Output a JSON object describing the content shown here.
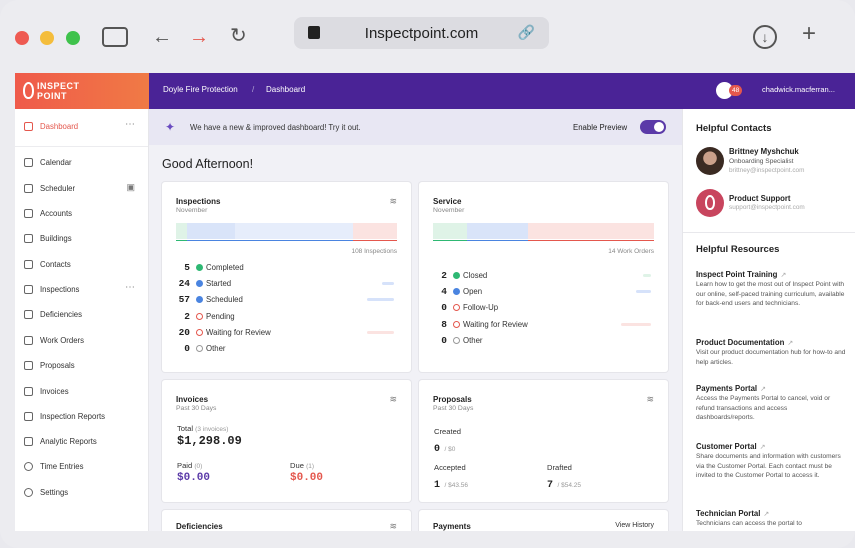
{
  "browser": {
    "url": "Inspectpoint.com"
  },
  "topbar": {
    "logo_line1": "INSPECT",
    "logo_line2": "POINT",
    "crumb_company": "Doyle Fire Protection",
    "crumb_page": "Dashboard",
    "notifications": "48",
    "user": "chadwick.macferran..."
  },
  "sidebar": {
    "items": [
      {
        "label": "Dashboard",
        "icon": "dashboard-icon"
      },
      {
        "label": "Calendar",
        "icon": "calendar-icon"
      },
      {
        "label": "Scheduler",
        "icon": "scheduler-icon"
      },
      {
        "label": "Accounts",
        "icon": "accounts-icon"
      },
      {
        "label": "Buildings",
        "icon": "buildings-icon"
      },
      {
        "label": "Contacts",
        "icon": "contacts-icon"
      },
      {
        "label": "Inspections",
        "icon": "inspections-icon"
      },
      {
        "label": "Deficiencies",
        "icon": "deficiencies-icon"
      },
      {
        "label": "Work Orders",
        "icon": "work-orders-icon"
      },
      {
        "label": "Proposals",
        "icon": "proposals-icon"
      },
      {
        "label": "Invoices",
        "icon": "invoices-icon"
      },
      {
        "label": "Inspection Reports",
        "icon": "inspection-reports-icon"
      },
      {
        "label": "Analytic Reports",
        "icon": "analytic-reports-icon"
      },
      {
        "label": "Time Entries",
        "icon": "time-entries-icon"
      },
      {
        "label": "Settings",
        "icon": "settings-icon"
      }
    ]
  },
  "banner": {
    "text": "We have a new & improved dashboard! Try it out.",
    "preview_label": "Enable Preview",
    "preview_enabled": true
  },
  "greeting": "Good Afternoon!",
  "inspections": {
    "title": "Inspections",
    "subtitle": "November",
    "total": "108 Inspections",
    "rows": [
      {
        "count": "5",
        "label": "Completed",
        "color": "#2eb873"
      },
      {
        "count": "24",
        "label": "Started",
        "color": "#4a84e0"
      },
      {
        "count": "57",
        "label": "Scheduled",
        "color": "#4a84e0"
      },
      {
        "count": "2",
        "label": "Pending",
        "color": "#e4574d"
      },
      {
        "count": "20",
        "label": "Waiting for Review",
        "color": "#e4574d"
      },
      {
        "count": "0",
        "label": "Other",
        "color": "#999999"
      }
    ]
  },
  "service": {
    "title": "Service",
    "subtitle": "November",
    "total": "14 Work Orders",
    "rows": [
      {
        "count": "2",
        "label": "Closed",
        "color": "#2eb873"
      },
      {
        "count": "4",
        "label": "Open",
        "color": "#4a84e0"
      },
      {
        "count": "0",
        "label": "Follow-Up",
        "color": "#e4574d"
      },
      {
        "count": "8",
        "label": "Waiting for Review",
        "color": "#e4574d"
      },
      {
        "count": "0",
        "label": "Other",
        "color": "#999999"
      }
    ]
  },
  "invoices": {
    "title": "Invoices",
    "subtitle": "Past 30 Days",
    "total_label": "Total",
    "total_note": "(3 invoices)",
    "total_value": "$1,298.09",
    "paid_label": "Paid",
    "paid_note": "(0)",
    "paid_value": "$0.00",
    "due_label": "Due",
    "due_note": "(1)",
    "due_value": "$0.00"
  },
  "proposals": {
    "title": "Proposals",
    "subtitle": "Past 30 Days",
    "created_label": "Created",
    "created_count": "0",
    "created_amount": "$0",
    "accepted_label": "Accepted",
    "accepted_count": "1",
    "accepted_amount": "$43.56",
    "drafted_label": "Drafted",
    "drafted_count": "7",
    "drafted_amount": "$54.25"
  },
  "deficiencies": {
    "title": "Deficiencies"
  },
  "payments": {
    "title": "Payments",
    "link": "View History"
  },
  "contacts": {
    "heading": "Helpful Contacts",
    "people": [
      {
        "name": "Brittney Myshchuk",
        "role": "Onboarding Specialist",
        "email": "brittney@inspectpoint.com"
      },
      {
        "name": "Product Support",
        "role": "",
        "email": "support@inspectpoint.com"
      }
    ]
  },
  "resources": {
    "heading": "Helpful Resources",
    "items": [
      {
        "title": "Inspect Point Training",
        "desc": "Learn how to get the most out of Inspect Point with our online, self-paced training curriculum, available for back-end users and technicians."
      },
      {
        "title": "Product Documentation",
        "desc": "Visit our product documentation hub for how-to and help articles."
      },
      {
        "title": "Payments Portal",
        "desc": "Access the Payments Portal to cancel, void or refund transactions and access dashboards/reports."
      },
      {
        "title": "Customer Portal",
        "desc": "Share documents and information with customers via the Customer Portal. Each contact must be invited to the Customer Portal to access it."
      },
      {
        "title": "Technician Portal",
        "desc": "Technicians can access the portal to"
      }
    ]
  }
}
